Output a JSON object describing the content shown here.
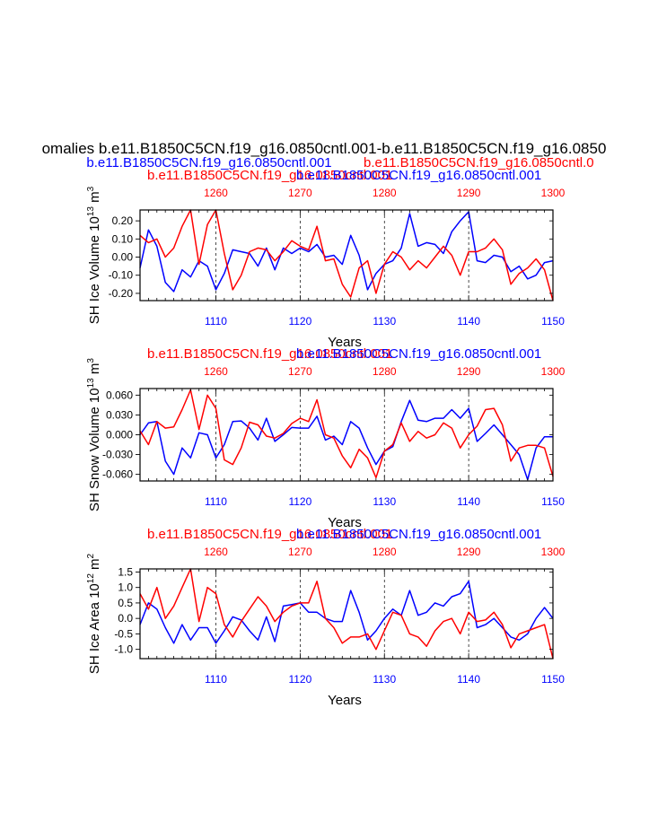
{
  "header": {
    "main_title": "omalies b.e11.B1850C5CN.f19_g16.0850cntl.001-b.e11.B1850C5CN.f19_g16.0850",
    "case_blue": "b.e11.B1850C5CN.f19_g16.0850cntl.001",
    "case_red": "b.e11.B1850C5CN.f19_g16.0850cntl.0"
  },
  "colors": {
    "blue": "#0000ff",
    "red": "#ff0000",
    "axis": "#000000",
    "grid": "#000000"
  },
  "chart_data": [
    {
      "type": "line",
      "title_red": "b.e11.B1850C5CN.f19_g16.0850cntl.001",
      "title_blue": "b.e11.B1850C5CN.f19_g16.0850cntl.001",
      "ylabel": "SH Ice Volume 10",
      "ylabel_exp": "13",
      "ylabel_unit": " m",
      "ylabel_unit_exp": "3",
      "xlabel": "Years",
      "ylim": [
        -0.24,
        0.26
      ],
      "yticks": [
        -0.2,
        -0.1,
        0.0,
        0.1,
        0.2
      ],
      "ytick_labels": [
        "-0.20",
        "-0.10",
        "0.00",
        "0.10",
        "0.20"
      ],
      "x_bottom": {
        "range": [
          1101,
          1150
        ],
        "ticks": [
          1110,
          1120,
          1130,
          1140,
          1150
        ],
        "labels": [
          "1110",
          "1120",
          "1130",
          "1140",
          "1150"
        ]
      },
      "x_top": {
        "range": [
          1251,
          1300
        ],
        "ticks": [
          1260,
          1270,
          1280,
          1290,
          1300
        ],
        "labels": [
          "1260",
          "1270",
          "1280",
          "1290",
          "1300"
        ]
      },
      "grid_x": [
        1110,
        1120,
        1130,
        1140
      ],
      "series": [
        {
          "name": "blue",
          "color": "#0000ff",
          "values": [
            -0.06,
            0.15,
            0.06,
            -0.14,
            -0.19,
            -0.07,
            -0.11,
            -0.02,
            -0.05,
            -0.18,
            -0.09,
            0.04,
            0.03,
            0.02,
            -0.05,
            0.05,
            -0.07,
            0.05,
            0.02,
            0.05,
            0.03,
            0.07,
            0.0,
            0.01,
            -0.04,
            0.12,
            0.01,
            -0.18,
            -0.09,
            -0.04,
            -0.02,
            0.05,
            0.24,
            0.06,
            0.08,
            0.07,
            0.02,
            0.14,
            0.2,
            0.25,
            -0.02,
            -0.03,
            0.01,
            0.0,
            -0.08,
            -0.05,
            -0.12,
            -0.1,
            -0.03,
            -0.02
          ]
        },
        {
          "name": "red",
          "color": "#ff0000",
          "values": [
            0.12,
            0.08,
            0.1,
            0.0,
            0.05,
            0.17,
            0.26,
            -0.04,
            0.18,
            0.26,
            0.02,
            -0.18,
            -0.1,
            0.03,
            0.05,
            0.04,
            -0.02,
            0.03,
            0.09,
            0.06,
            0.04,
            0.17,
            -0.02,
            -0.01,
            -0.15,
            -0.22,
            -0.06,
            -0.02,
            -0.2,
            -0.04,
            0.03,
            0.0,
            -0.07,
            -0.02,
            -0.06,
            0.0,
            0.06,
            0.01,
            -0.1,
            0.03,
            0.03,
            0.05,
            0.1,
            0.04,
            -0.15,
            -0.09,
            -0.06,
            -0.01,
            -0.07,
            -0.24
          ]
        }
      ]
    },
    {
      "type": "line",
      "title_red": "b.e11.B1850C5CN.f19_g16.0850cntl.001",
      "title_blue": "b.e11.B1850C5CN.f19_g16.0850cntl.001",
      "ylabel": "SH Snow Volume 10",
      "ylabel_exp": "13",
      "ylabel_unit": " m",
      "ylabel_unit_exp": "3",
      "xlabel": "Years",
      "ylim": [
        -0.07,
        0.07
      ],
      "yticks": [
        -0.06,
        -0.03,
        0.0,
        0.03,
        0.06
      ],
      "ytick_labels": [
        "-0.060",
        "-0.030",
        "0.000",
        "0.030",
        "0.060"
      ],
      "x_bottom": {
        "range": [
          1101,
          1150
        ],
        "ticks": [
          1110,
          1120,
          1130,
          1140,
          1150
        ],
        "labels": [
          "1110",
          "1120",
          "1130",
          "1140",
          "1150"
        ]
      },
      "x_top": {
        "range": [
          1251,
          1300
        ],
        "ticks": [
          1260,
          1270,
          1280,
          1290,
          1300
        ],
        "labels": [
          "1260",
          "1270",
          "1280",
          "1290",
          "1300"
        ]
      },
      "grid_x": [
        1110,
        1120,
        1130,
        1140
      ],
      "series": [
        {
          "name": "blue",
          "color": "#0000ff",
          "values": [
            0.0,
            0.018,
            0.02,
            -0.04,
            -0.06,
            -0.02,
            -0.035,
            0.003,
            0.0,
            -0.035,
            -0.015,
            0.02,
            0.021,
            0.01,
            -0.008,
            0.025,
            -0.01,
            0.0,
            0.011,
            0.01,
            0.01,
            0.028,
            -0.008,
            -0.002,
            -0.015,
            0.02,
            0.01,
            -0.02,
            -0.045,
            -0.025,
            -0.018,
            0.02,
            0.052,
            0.022,
            0.02,
            0.025,
            0.025,
            0.038,
            0.025,
            0.04,
            -0.01,
            0.002,
            0.015,
            0.0,
            -0.015,
            -0.03,
            -0.068,
            -0.02,
            -0.003,
            -0.003
          ]
        },
        {
          "name": "red",
          "color": "#ff0000",
          "values": [
            0.006,
            -0.015,
            0.02,
            0.01,
            0.012,
            0.038,
            0.068,
            0.008,
            0.06,
            0.04,
            -0.038,
            -0.045,
            -0.02,
            0.019,
            0.015,
            -0.002,
            -0.005,
            0.002,
            0.017,
            0.025,
            0.02,
            0.053,
            0.0,
            -0.005,
            -0.032,
            -0.05,
            -0.022,
            -0.035,
            -0.065,
            -0.025,
            -0.015,
            0.018,
            -0.01,
            0.005,
            -0.005,
            0.0,
            0.018,
            0.01,
            -0.02,
            0.0,
            0.013,
            0.038,
            0.04,
            0.015,
            -0.04,
            -0.02,
            -0.016,
            -0.016,
            -0.02,
            -0.063
          ]
        }
      ]
    },
    {
      "type": "line",
      "title_red": "b.e11.B1850C5CN.f19_g16.0850cntl.001",
      "title_blue": "b.e11.B1850C5CN.f19_g16.0850cntl.001",
      "ylabel": "SH Ice Area 10",
      "ylabel_exp": "12",
      "ylabel_unit": " m",
      "ylabel_unit_exp": "2",
      "xlabel": "Years",
      "ylim": [
        -1.3,
        1.6
      ],
      "yticks": [
        -1.0,
        -0.5,
        0.0,
        0.5,
        1.0,
        1.5
      ],
      "ytick_labels": [
        "-1.0",
        "-0.5",
        "0.0",
        "0.5",
        "1.0",
        "1.5"
      ],
      "x_bottom": {
        "range": [
          1101,
          1150
        ],
        "ticks": [
          1110,
          1120,
          1130,
          1140,
          1150
        ],
        "labels": [
          "1110",
          "1120",
          "1130",
          "1140",
          "1150"
        ]
      },
      "x_top": {
        "range": [
          1251,
          1300
        ],
        "ticks": [
          1260,
          1270,
          1280,
          1290,
          1300
        ],
        "labels": [
          "1260",
          "1270",
          "1280",
          "1290",
          "1300"
        ]
      },
      "grid_x": [
        1110,
        1120,
        1130,
        1140
      ],
      "series": [
        {
          "name": "blue",
          "color": "#0000ff",
          "values": [
            -0.2,
            0.5,
            0.3,
            -0.3,
            -0.8,
            -0.2,
            -0.7,
            -0.3,
            -0.3,
            -0.8,
            -0.4,
            0.05,
            -0.05,
            -0.4,
            -0.7,
            0.05,
            -0.75,
            0.4,
            0.45,
            0.5,
            0.2,
            0.2,
            0.0,
            -0.1,
            -0.1,
            0.9,
            0.2,
            -0.7,
            -0.4,
            0.0,
            0.3,
            0.1,
            0.9,
            0.1,
            0.2,
            0.5,
            0.4,
            0.7,
            0.8,
            1.2,
            -0.3,
            -0.2,
            0.0,
            -0.3,
            -0.6,
            -0.7,
            -0.5,
            0.0,
            0.35,
            0.0
          ]
        },
        {
          "name": "red",
          "color": "#ff0000",
          "values": [
            0.8,
            0.3,
            1.0,
            0.0,
            0.4,
            1.0,
            1.6,
            -0.1,
            1.0,
            0.8,
            -0.2,
            -0.6,
            -0.1,
            0.3,
            0.7,
            0.4,
            -0.1,
            0.2,
            0.4,
            0.5,
            0.5,
            1.2,
            0.0,
            -0.3,
            -0.8,
            -0.6,
            -0.6,
            -0.5,
            -1.0,
            -0.4,
            0.2,
            0.1,
            -0.5,
            -0.6,
            -0.9,
            -0.4,
            -0.1,
            0.0,
            -0.5,
            0.2,
            -0.1,
            -0.05,
            0.2,
            -0.2,
            -0.95,
            -0.5,
            -0.4,
            -0.3,
            -0.2,
            -1.3
          ]
        }
      ]
    }
  ]
}
